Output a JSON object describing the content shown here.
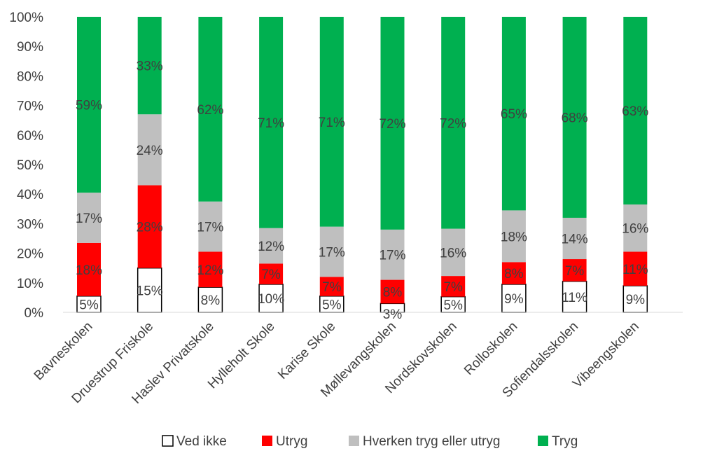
{
  "chart_data": {
    "type": "bar",
    "stacked": true,
    "percent_stacked": true,
    "categories": [
      "Bavneskolen",
      "Druestrup Friskole",
      "Haslev Privatskole",
      "Hylleholt Skole",
      "Karise Skole",
      "Møllevangskolen",
      "Nordskovskolen",
      "Rolloskolen",
      "Sofiendalsskolen",
      "Vibeengskolen"
    ],
    "series": [
      {
        "name": "Ved ikke",
        "color": "#ffffff",
        "border": "#000000",
        "values": [
          5.5,
          15,
          8.5,
          9.5,
          5.5,
          3,
          5.3,
          9.5,
          10.5,
          9
        ],
        "labels": [
          "5%",
          "15%",
          "8%",
          "10%",
          "5%",
          "3%",
          "5%",
          "9%",
          "11%",
          "9%"
        ]
      },
      {
        "name": "Utryg",
        "color": "#ff0000",
        "values": [
          18,
          28,
          12,
          7,
          6.5,
          8,
          7,
          7.5,
          7.5,
          11.5
        ],
        "labels": [
          "18%",
          "28%",
          "12%",
          "7%",
          "7%",
          "8%",
          "7%",
          "8%",
          "7%",
          "11%"
        ]
      },
      {
        "name": "Hverken tryg eller utryg",
        "color": "#bfbfbf",
        "values": [
          17,
          24,
          17,
          12,
          17,
          17,
          16,
          17.5,
          14,
          16
        ],
        "labels": [
          "17%",
          "24%",
          "17%",
          "12%",
          "17%",
          "17%",
          "16%",
          "18%",
          "14%",
          "16%"
        ]
      },
      {
        "name": "Tryg",
        "color": "#00b050",
        "values": [
          59.5,
          33,
          62.5,
          71.5,
          71,
          72,
          71.7,
          65.5,
          68,
          63.5
        ],
        "labels": [
          "59%",
          "33%",
          "62%",
          "71%",
          "71%",
          "72%",
          "72%",
          "65%",
          "68%",
          "63%"
        ]
      }
    ],
    "ylim": [
      0,
      100
    ],
    "yticks": [
      "0%",
      "10%",
      "20%",
      "30%",
      "40%",
      "50%",
      "60%",
      "70%",
      "80%",
      "90%",
      "100%"
    ],
    "grid": false,
    "legend_position": "bottom",
    "title": "",
    "xlabel": "",
    "ylabel": ""
  }
}
